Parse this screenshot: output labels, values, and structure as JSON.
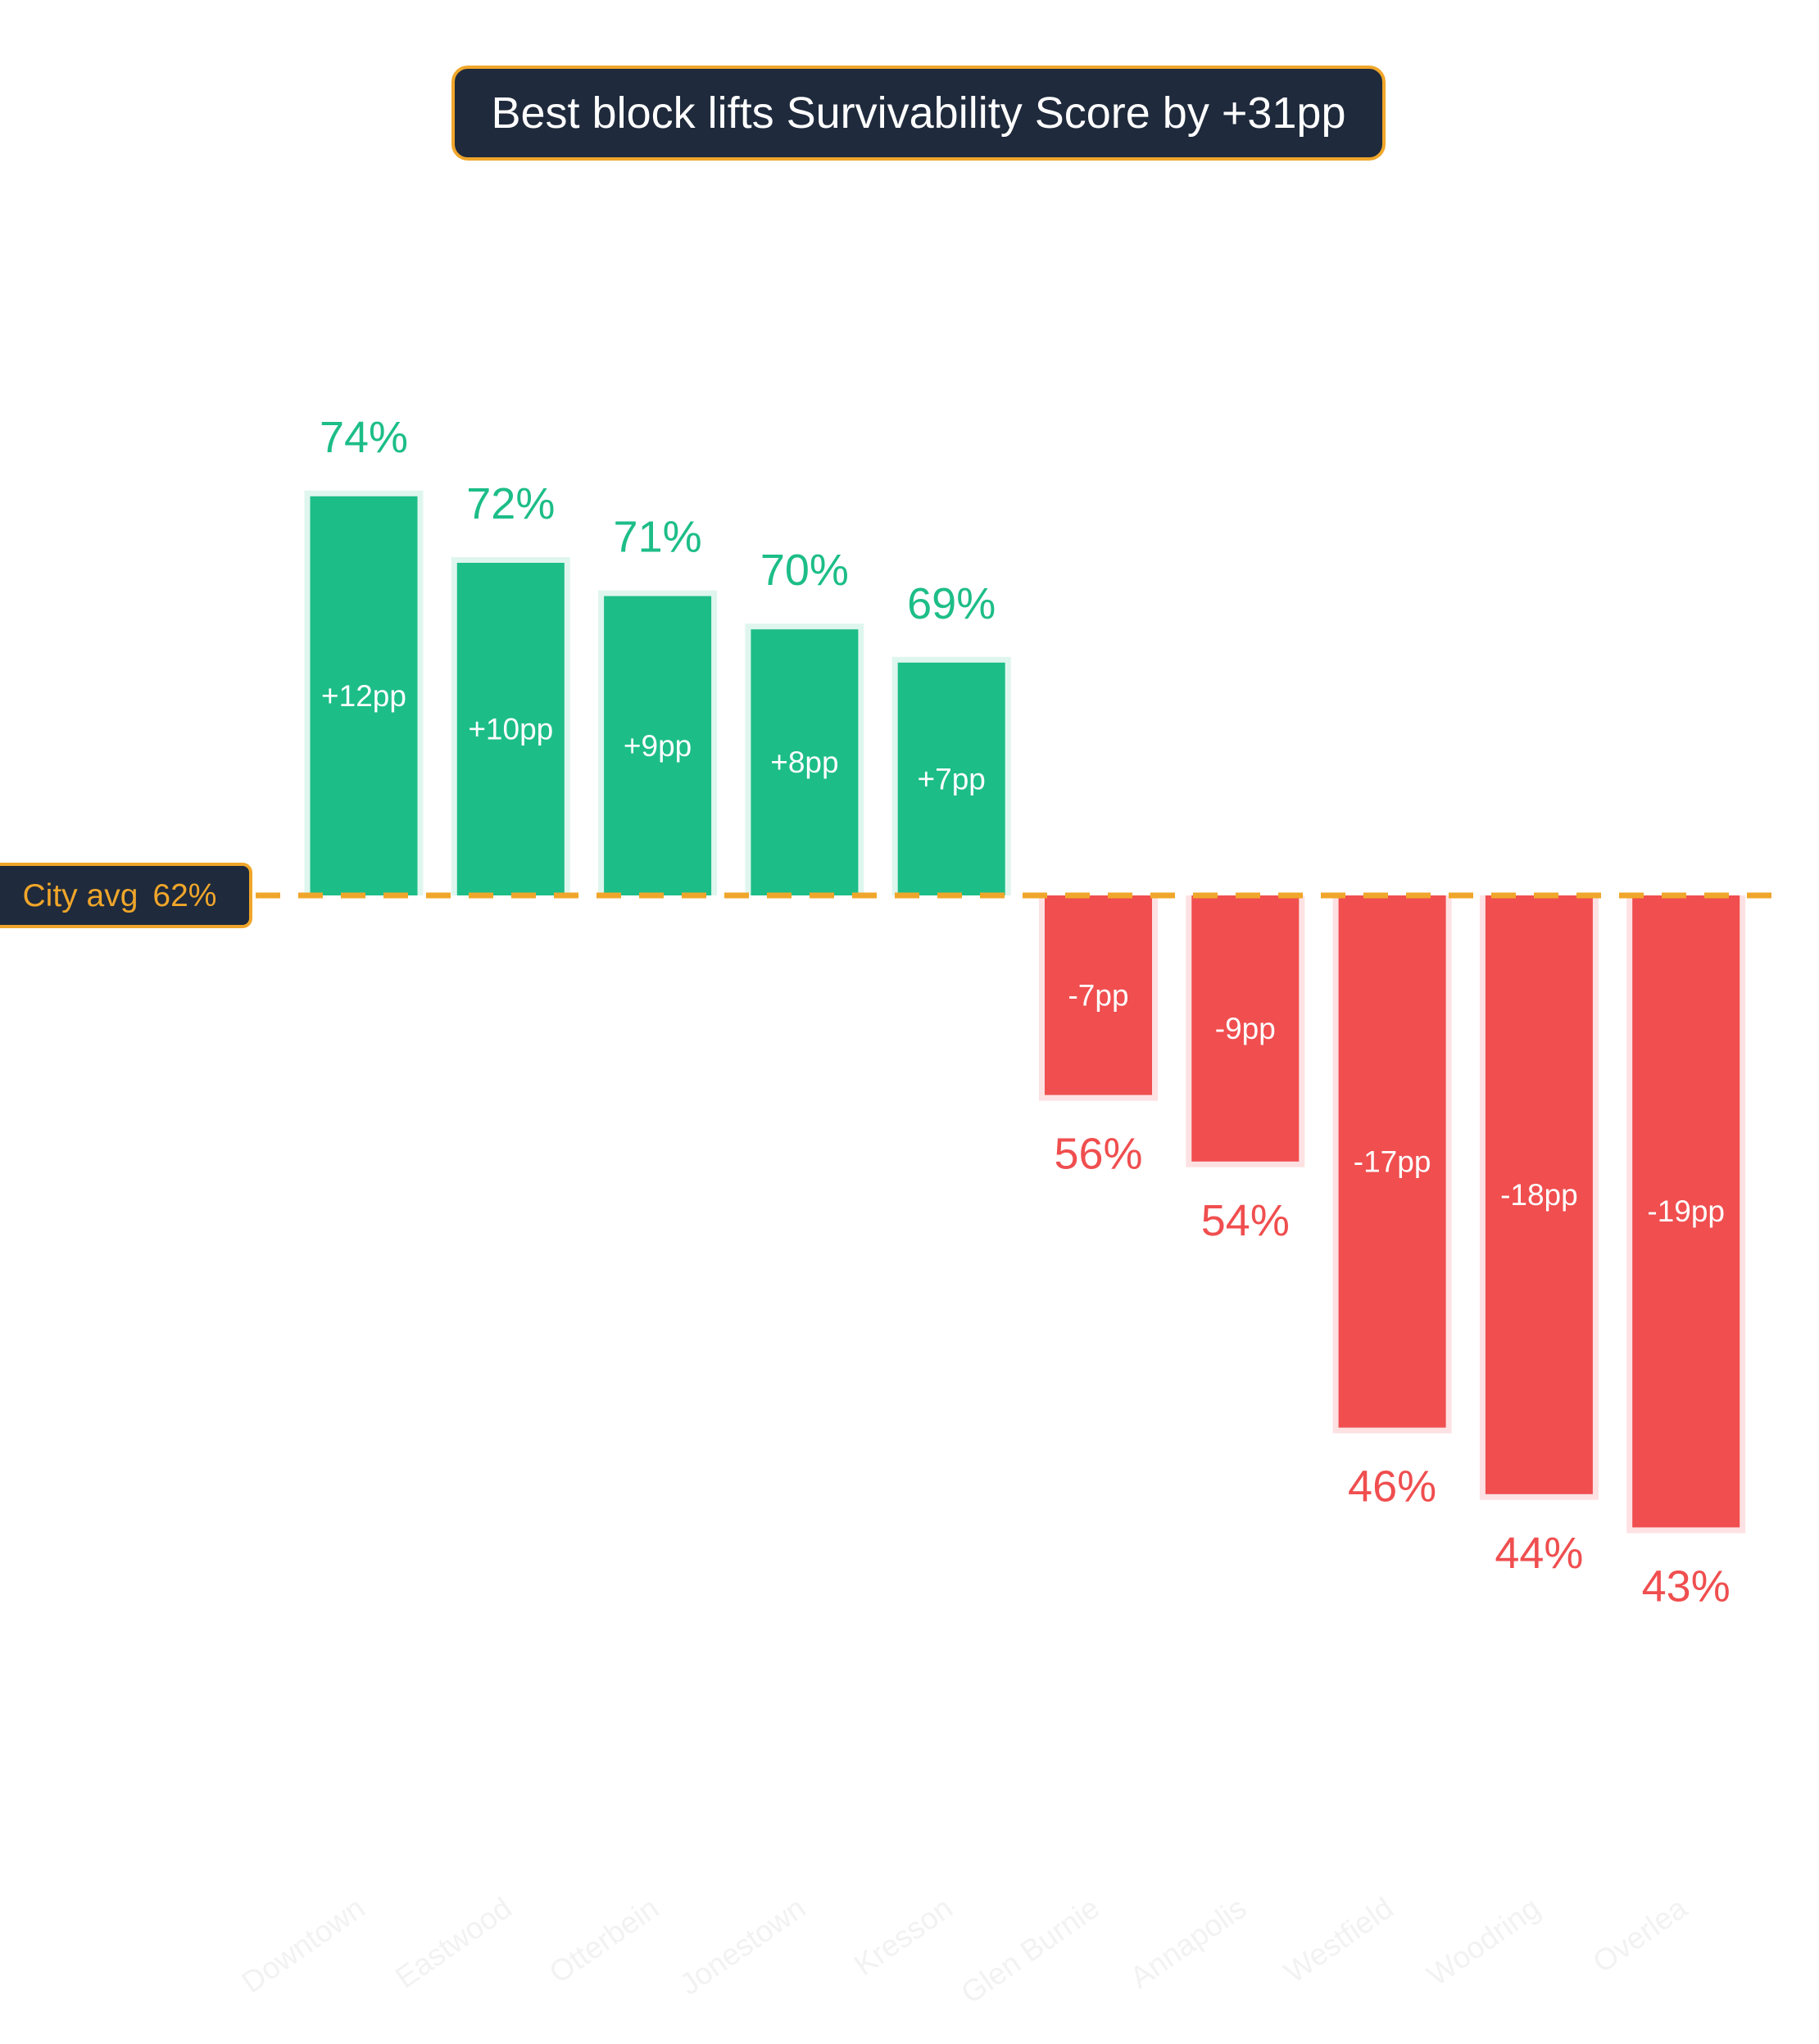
{
  "chart_data": {
    "type": "bar",
    "title": "Best block lifts Survivability Score by +31pp",
    "baseline": {
      "label": "City avg",
      "value_label": "62%",
      "value": 62
    },
    "categories": [
      "Downtown",
      "Eastwood",
      "Otterbein",
      "Jonestown",
      "Kresson",
      "Glen Burnie",
      "Annapolis",
      "Westfield",
      "Woodring",
      "Overlea"
    ],
    "values": [
      74,
      72,
      71,
      70,
      69,
      56,
      54,
      46,
      44,
      43
    ],
    "value_labels": [
      "74%",
      "72%",
      "71%",
      "70%",
      "69%",
      "56%",
      "54%",
      "46%",
      "44%",
      "43%"
    ],
    "delta_labels": [
      "+12pp",
      "+10pp",
      "+9pp",
      "+8pp",
      "+7pp",
      "-7pp",
      "-9pp",
      "-17pp",
      "-18pp",
      "-19pp"
    ],
    "xlabel": "",
    "ylabel": "",
    "ylim": [
      40,
      78
    ],
    "grid": false,
    "legend": "none"
  },
  "colors": {
    "positive": "#1dbd88",
    "positive_halo": "#dff6ee",
    "negative": "#f04e4f",
    "negative_halo": "#fde1e3",
    "baseline": "#f0a62a",
    "badge_bg": "#1f2a3c",
    "badge_text": "#ffffff",
    "delta_text": "#ffffff",
    "category_text": "#f2f2f2"
  }
}
